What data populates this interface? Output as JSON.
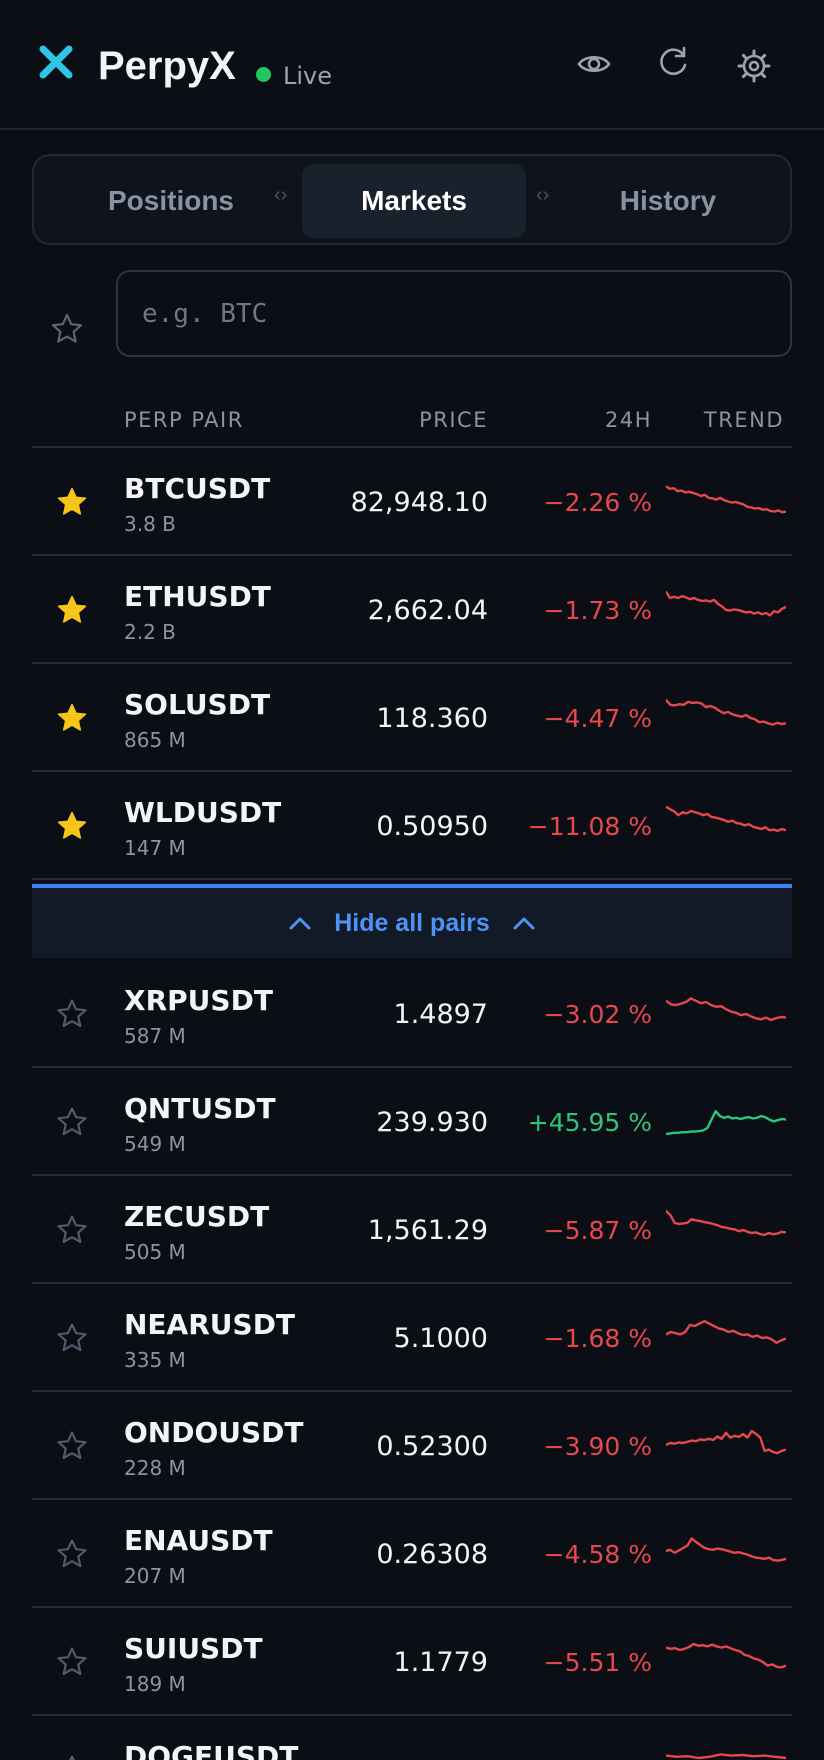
{
  "app": {
    "name": "PerpyX",
    "status": "Live",
    "accent": "#2ec5e6",
    "live_color": "#22c55e"
  },
  "header_icons": [
    "eye-icon",
    "refresh-icon",
    "gear-icon"
  ],
  "tabs": [
    {
      "label": "Positions",
      "active": false
    },
    {
      "label": "Markets",
      "active": true
    },
    {
      "label": "History",
      "active": false
    }
  ],
  "tab_separator": "‹›",
  "search": {
    "placeholder": "e.g. BTC",
    "value": ""
  },
  "columns": {
    "pair": "PERP PAIR",
    "price": "PRICE",
    "change": "24H",
    "trend": "TREND"
  },
  "hide_toggle": {
    "label": "Hide all pairs"
  },
  "colors": {
    "negative": "#e5484d",
    "positive": "#2fc47a",
    "star": "#f5c518",
    "link": "#4e92f5"
  },
  "favorites": [
    {
      "symbol": "BTCUSDT",
      "volume": "3.8 B",
      "price": "82,948.10",
      "change": "−2.26 %",
      "direction": "down",
      "favorite": true,
      "trend": [
        66,
        62,
        63,
        58,
        59,
        56,
        57,
        55,
        53,
        50,
        52,
        47,
        46,
        44,
        47,
        43,
        41,
        39,
        40,
        38,
        36,
        32,
        31,
        29,
        30,
        27,
        28,
        25,
        24,
        26,
        23,
        24
      ]
    },
    {
      "symbol": "ETHUSDT",
      "volume": "2.2 B",
      "price": "2,662.04",
      "change": "−1.73 %",
      "direction": "down",
      "favorite": true,
      "trend": [
        70,
        60,
        62,
        60,
        63,
        61,
        58,
        60,
        57,
        55,
        56,
        54,
        57,
        50,
        46,
        40,
        39,
        41,
        40,
        38,
        36,
        37,
        34,
        36,
        33,
        35,
        31,
        38,
        36,
        42,
        45
      ]
    },
    {
      "symbol": "SOLUSDT",
      "volume": "865 M",
      "price": "118.360",
      "change": "−4.47 %",
      "direction": "down",
      "favorite": true,
      "trend": [
        70,
        62,
        61,
        63,
        62,
        67,
        65,
        66,
        64,
        58,
        60,
        57,
        52,
        48,
        50,
        46,
        44,
        42,
        45,
        40,
        38,
        33,
        34,
        31,
        29,
        32,
        30,
        31
      ]
    },
    {
      "symbol": "WLDUSDT",
      "volume": "147 M",
      "price": "0.50950",
      "change": "−11.08 %",
      "direction": "down",
      "favorite": true,
      "trend": [
        72,
        68,
        64,
        58,
        63,
        61,
        65,
        63,
        61,
        58,
        60,
        55,
        54,
        52,
        50,
        47,
        49,
        45,
        44,
        41,
        43,
        39,
        37,
        35,
        38,
        33,
        34,
        32,
        35,
        33
      ]
    }
  ],
  "pairs": [
    {
      "symbol": "XRPUSDT",
      "volume": "587 M",
      "price": "1.4897",
      "change": "−3.02 %",
      "direction": "down",
      "favorite": false,
      "trend": [
        62,
        56,
        55,
        57,
        60,
        66,
        62,
        58,
        60,
        55,
        52,
        53,
        48,
        44,
        42,
        38,
        40,
        36,
        33,
        31,
        34,
        30,
        33,
        35,
        34
      ]
    },
    {
      "symbol": "QNTUSDT",
      "volume": "549 M",
      "price": "239.930",
      "change": "+45.95 %",
      "direction": "up",
      "favorite": false,
      "trend": [
        20,
        21,
        22,
        22,
        23,
        23,
        24,
        24,
        25,
        26,
        30,
        44,
        58,
        50,
        47,
        49,
        46,
        47,
        45,
        47,
        48,
        46,
        47,
        50,
        48,
        44,
        41,
        43,
        45,
        44
      ]
    },
    {
      "symbol": "ZECUSDT",
      "volume": "505 M",
      "price": "1,561.29",
      "change": "−5.87 %",
      "direction": "down",
      "favorite": false,
      "trend": [
        72,
        65,
        52,
        50,
        51,
        52,
        58,
        56,
        55,
        53,
        52,
        50,
        48,
        45,
        44,
        42,
        41,
        38,
        40,
        37,
        35,
        36,
        33,
        32,
        35,
        33,
        34,
        37,
        36
      ]
    },
    {
      "symbol": "NEARUSDT",
      "volume": "335 M",
      "price": "5.1000",
      "change": "−1.68 %",
      "direction": "down",
      "favorite": false,
      "trend": [
        46,
        50,
        48,
        46,
        50,
        62,
        60,
        64,
        68,
        64,
        60,
        56,
        54,
        50,
        52,
        48,
        45,
        46,
        42,
        44,
        40,
        41,
        38,
        32,
        36,
        39
      ]
    },
    {
      "symbol": "ONDOUSDT",
      "volume": "228 M",
      "price": "0.52300",
      "change": "−3.90 %",
      "direction": "down",
      "favorite": false,
      "trend": [
        42,
        45,
        44,
        46,
        45,
        47,
        49,
        48,
        51,
        50,
        52,
        50,
        56,
        52,
        62,
        54,
        57,
        55,
        60,
        54,
        65,
        60,
        54,
        32,
        34,
        30,
        28,
        32,
        34
      ]
    },
    {
      "symbol": "ENAUSDT",
      "volume": "207 M",
      "price": "0.26308",
      "change": "−4.58 %",
      "direction": "down",
      "favorite": false,
      "trend": [
        45,
        47,
        42,
        46,
        50,
        54,
        66,
        60,
        55,
        50,
        48,
        47,
        49,
        48,
        46,
        44,
        42,
        43,
        41,
        39,
        36,
        34,
        33,
        32,
        34,
        30,
        29,
        30,
        32
      ]
    },
    {
      "symbol": "SUIUSDT",
      "volume": "189 M",
      "price": "1.1779",
      "change": "−5.51 %",
      "direction": "down",
      "favorite": false,
      "trend": [
        64,
        62,
        63,
        60,
        62,
        65,
        70,
        67,
        68,
        66,
        69,
        66,
        64,
        66,
        63,
        60,
        58,
        52,
        50,
        46,
        44,
        40,
        34,
        36,
        32,
        31,
        34
      ]
    },
    {
      "symbol": "DOGEUSDT",
      "volume": "",
      "price": "",
      "change": "",
      "direction": "down",
      "favorite": false,
      "trend": [
        64,
        62,
        63,
        60,
        62,
        66,
        64,
        65,
        63,
        64,
        62,
        60
      ]
    }
  ]
}
